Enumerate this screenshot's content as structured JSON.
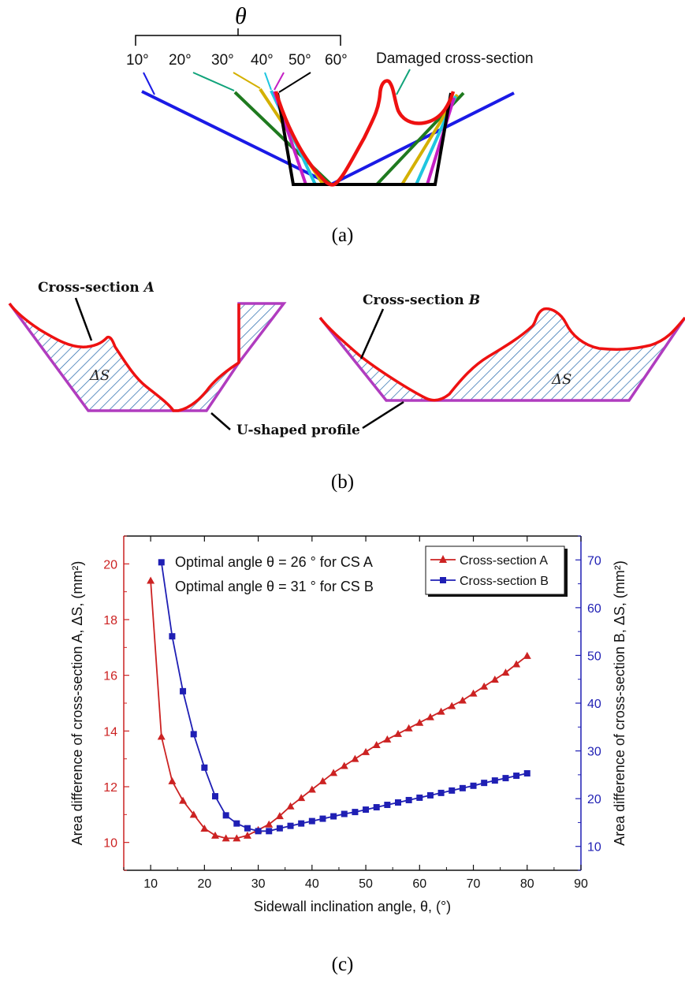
{
  "panel_a": {
    "theta_symbol": "θ",
    "angle_labels": [
      "10°",
      "20°",
      "30°",
      "40°",
      "50°",
      "60°"
    ],
    "damaged_label": "Damaged cross-section",
    "caption": "(a)",
    "colors": {
      "10°": "#1a1ae6",
      "20°": "#1f7a1f",
      "30°": "#d4b000",
      "40°": "#1fc6e0",
      "50°": "#c41fc4",
      "60°": "#000000",
      "damaged": "#ee1111"
    }
  },
  "panel_b": {
    "label_a": "Cross-section ",
    "label_a_var": "A",
    "label_b": "Cross-section ",
    "label_b_var": "B",
    "delta_s": "ΔS",
    "u_label": "U-shaped profile",
    "caption": "(b)",
    "colors": {
      "profile": "#b03cbf",
      "section": "#ee1111",
      "hatch": "#2f6fb0"
    }
  },
  "panel_c": {
    "caption": "(c)",
    "annotation_1": "Optimal angle θ = 26 ° for CS A",
    "annotation_2": "Optimal angle θ = 31 ° for CS B",
    "colors": {
      "A": "#cc2222",
      "B": "#1f1fb4"
    }
  },
  "chart_data": {
    "type": "line",
    "xlabel": "Sidewall inclination angle, θ, (°)",
    "ylabel_left": "Area difference of cross-section A, ΔS, (mm²)",
    "ylabel_right": "Area difference of cross-section B, ΔS, (mm²)",
    "xlim": [
      5,
      90
    ],
    "ylim_left": [
      9,
      21
    ],
    "ylim_right": [
      5,
      75
    ],
    "x_ticks": [
      10,
      20,
      30,
      40,
      50,
      60,
      70,
      80,
      90
    ],
    "y_left_ticks": [
      10,
      12,
      14,
      16,
      18,
      20
    ],
    "y_right_ticks": [
      10,
      20,
      30,
      40,
      50,
      60,
      70
    ],
    "grid": false,
    "legend_position": "top-right",
    "series": [
      {
        "name": "Cross-section A",
        "axis": "left",
        "marker": "triangle",
        "x": [
          10,
          12,
          14,
          16,
          18,
          20,
          22,
          24,
          26,
          28,
          30,
          32,
          34,
          36,
          38,
          40,
          42,
          44,
          46,
          48,
          50,
          52,
          54,
          56,
          58,
          60,
          62,
          64,
          66,
          68,
          70,
          72,
          74,
          76,
          78,
          80
        ],
        "values": [
          19.4,
          13.8,
          12.2,
          11.5,
          11.0,
          10.5,
          10.25,
          10.15,
          10.15,
          10.25,
          10.45,
          10.65,
          10.95,
          11.3,
          11.6,
          11.9,
          12.2,
          12.5,
          12.75,
          13.0,
          13.25,
          13.5,
          13.7,
          13.9,
          14.1,
          14.3,
          14.5,
          14.7,
          14.9,
          15.1,
          15.35,
          15.6,
          15.85,
          16.1,
          16.4,
          16.7
        ]
      },
      {
        "name": "Cross-section B",
        "axis": "right",
        "marker": "square",
        "x": [
          12,
          14,
          16,
          18,
          20,
          22,
          24,
          26,
          28,
          30,
          32,
          34,
          36,
          38,
          40,
          42,
          44,
          46,
          48,
          50,
          52,
          54,
          56,
          58,
          60,
          62,
          64,
          66,
          68,
          70,
          72,
          74,
          76,
          78,
          80
        ],
        "values": [
          69.5,
          54.0,
          42.5,
          33.5,
          26.5,
          20.5,
          16.5,
          14.8,
          13.8,
          13.2,
          13.2,
          13.8,
          14.3,
          14.8,
          15.3,
          15.8,
          16.3,
          16.8,
          17.2,
          17.7,
          18.2,
          18.7,
          19.2,
          19.7,
          20.2,
          20.7,
          21.2,
          21.7,
          22.2,
          22.7,
          23.3,
          23.8,
          24.3,
          24.8,
          25.3
        ]
      }
    ]
  }
}
